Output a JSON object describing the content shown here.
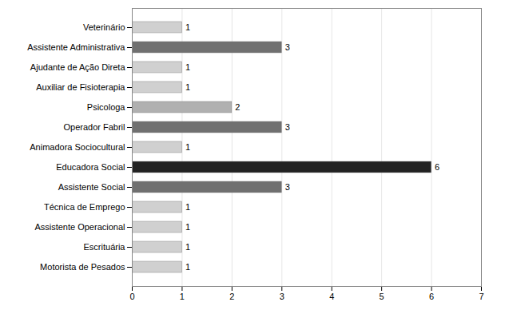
{
  "chart_data": {
    "type": "bar",
    "orientation": "horizontal",
    "categories": [
      "Motorista de Pesados",
      "Escrituária",
      "Assistente Operacional",
      "Técnica de Emprego",
      "Assistente Social",
      "Educadora Social",
      "Animadora Sociocultural",
      "Operador Fabril",
      "Psicologa",
      "Auxiliar de Fisioterapia",
      "Ajudante de Ação Direta",
      "Assistente Administrativa",
      "Veterinário"
    ],
    "values": [
      1,
      1,
      1,
      1,
      3,
      6,
      1,
      3,
      2,
      1,
      1,
      3,
      1
    ],
    "colors": [
      "#d0d0d0",
      "#d0d0d0",
      "#d0d0d0",
      "#d0d0d0",
      "#707070",
      "#222222",
      "#d0d0d0",
      "#707070",
      "#b0b0b0",
      "#d0d0d0",
      "#d0d0d0",
      "#707070",
      "#d0d0d0"
    ],
    "xlim": [
      0,
      7
    ],
    "xticks": [
      0,
      1,
      2,
      3,
      4,
      5,
      6,
      7
    ],
    "grid": true,
    "data_labels": true
  }
}
